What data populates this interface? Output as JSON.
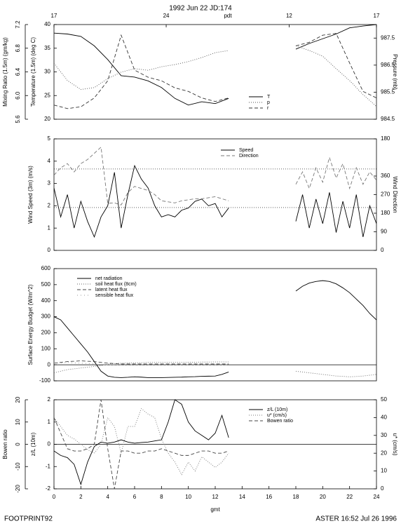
{
  "title": "1992 Jun 22 JD:174",
  "footer_left": "FOOTPRINT92",
  "footer_right": "ASTER 16:52 Jul 26 1996",
  "chart_data": [
    {
      "type": "line",
      "x": [
        0,
        1,
        2,
        3,
        4,
        5,
        6,
        7,
        8,
        9,
        10,
        11,
        12,
        13,
        15,
        18,
        19,
        20,
        21,
        22,
        23,
        24
      ],
      "xlim": [
        0,
        24
      ],
      "x2ticks": [
        {
          "value": 0,
          "label": "17"
        },
        {
          "value": 8.35,
          "label": "24"
        },
        {
          "value": 17.5,
          "label": "12"
        },
        {
          "value": 24,
          "label": "17"
        }
      ],
      "x2label": "pdt",
      "ylabel": "Temperature (1.5m) (deg C)",
      "ylim": [
        20,
        40
      ],
      "yticks": [
        20,
        25,
        30,
        35,
        40
      ],
      "y3label": "Mixing Ratio (1.5m) (gm/kg)",
      "y3lim": [
        5.6,
        7.2
      ],
      "y3ticks": [
        5.6,
        {
          "value": 6,
          "label": "6.0"
        },
        6.4,
        6.8,
        7.2
      ],
      "y2label": "Pressure (mb)",
      "y2lim": [
        984.5,
        988
      ],
      "y2ticks": [
        984.5,
        985.5,
        986.5,
        987.5
      ],
      "legend": "lower center",
      "series": [
        {
          "name": "T",
          "color": "#000000",
          "style": "solid",
          "axis": "y",
          "values": [
            38.2,
            38,
            37.5,
            35.5,
            32.6,
            29.2,
            28.9,
            28.1,
            26.7,
            24.4,
            23,
            23.7,
            23.3,
            24.4,
            null,
            34.8,
            36,
            37,
            38,
            39.3,
            39.7,
            40
          ]
        },
        {
          "name": "p",
          "color": "#555555",
          "style": "dotted",
          "axis": "y2",
          "values": [
            986.57,
            985.93,
            985.6,
            985.67,
            986.0,
            986.24,
            986.37,
            986.31,
            986.44,
            986.52,
            986.63,
            986.78,
            986.96,
            987.04,
            null,
            987.22,
            987.04,
            986.83,
            986.37,
            985.93,
            985.41,
            984.97
          ]
        },
        {
          "name": "r",
          "color": "#333333",
          "style": "dashed",
          "axis": "y3",
          "values": [
            5.84,
            5.78,
            5.81,
            5.96,
            6.25,
            7.02,
            6.43,
            6.31,
            6.25,
            6.13,
            6.07,
            5.96,
            5.9,
            5.96,
            null,
            6.84,
            6.9,
            7.02,
            7.05,
            6.55,
            6.07,
            5.96
          ]
        }
      ]
    },
    {
      "type": "line",
      "x": [
        0,
        0.5,
        1,
        1.5,
        2,
        2.5,
        3,
        3.5,
        4,
        4.5,
        5,
        5.5,
        6,
        6.5,
        7,
        7.5,
        8,
        8.5,
        9,
        9.5,
        10,
        10.5,
        11,
        11.5,
        12,
        12.5,
        13,
        13.5,
        14,
        14.5,
        15,
        15.5,
        16,
        16.5,
        17,
        17.5,
        18,
        18.5,
        19,
        19.5,
        20,
        20.5,
        21,
        21.5,
        22,
        22.5,
        23,
        23.5,
        24
      ],
      "xlim": [
        0,
        24
      ],
      "ylabel": "Wind Speed (3m) (m/s)",
      "ylim": [
        0,
        5
      ],
      "yticks": [
        0,
        1,
        2,
        3,
        4,
        5
      ],
      "y2label": "Wind Direction",
      "y2lim": [
        0,
        540
      ],
      "y2ticks": [
        0,
        90,
        180,
        270,
        360,
        {
          "value": 540,
          "label": "180"
        }
      ],
      "hlines": [
        3.65,
        1.92
      ],
      "legend": "upper center",
      "series": [
        {
          "name": "Speed",
          "color": "#000000",
          "style": "solid",
          "axis": "y",
          "values": [
            2.8,
            1.5,
            2.5,
            1.0,
            2.2,
            1.3,
            0.6,
            1.5,
            2.0,
            3.5,
            1.0,
            2.5,
            3.8,
            3.2,
            2.8,
            2.0,
            1.5,
            1.6,
            1.5,
            1.8,
            1.9,
            2.2,
            2.3,
            2.0,
            2.1,
            1.5,
            1.9,
            null,
            null,
            null,
            null,
            null,
            null,
            null,
            null,
            null,
            1.3,
            2.5,
            1.0,
            2.3,
            1.2,
            2.6,
            0.8,
            2.2,
            1.0,
            2.5,
            0.6,
            2.0,
            1.2
          ]
        },
        {
          "name": "Direction",
          "color": "#777777",
          "style": "dashed",
          "axis": "y2",
          "values": [
            364,
            400,
            420,
            380,
            420,
            440,
            470,
            500,
            228,
            230,
            220,
            280,
            310,
            300,
            290,
            270,
            240,
            235,
            230,
            240,
            245,
            250,
            250,
            255,
            260,
            250,
            240,
            null,
            null,
            null,
            null,
            null,
            null,
            null,
            null,
            null,
            320,
            380,
            300,
            400,
            330,
            450,
            350,
            420,
            300,
            400,
            320,
            380,
            340
          ]
        }
      ]
    },
    {
      "type": "line",
      "x": [
        0,
        0.5,
        1,
        1.5,
        2,
        2.5,
        3,
        3.5,
        4,
        4.5,
        5,
        5.5,
        6,
        6.5,
        7,
        7.5,
        8,
        8.5,
        9,
        9.5,
        10,
        10.5,
        11,
        11.5,
        12,
        12.5,
        13,
        13.5,
        14,
        14.5,
        15,
        15.5,
        16,
        16.5,
        17,
        17.5,
        18,
        18.5,
        19,
        19.5,
        20,
        20.5,
        21,
        21.5,
        22,
        22.5,
        23,
        23.5,
        24
      ],
      "xlim": [
        0,
        24
      ],
      "ylabel": "Surface Energy Budget (W/m^2)",
      "ylim": [
        -100,
        600
      ],
      "yticks": [
        -100,
        0,
        100,
        200,
        300,
        400,
        500,
        600
      ],
      "legend": "upper left",
      "series": [
        {
          "name": "net radiation",
          "color": "#000000",
          "style": "solid",
          "axis": "y",
          "values": [
            300,
            280,
            230,
            180,
            130,
            80,
            20,
            -40,
            -70,
            -78,
            -80,
            -78,
            -75,
            -77,
            -80,
            -80,
            -80,
            -79,
            -78,
            -77,
            -75,
            -74,
            -72,
            -71,
            -70,
            -60,
            -45,
            null,
            null,
            null,
            null,
            null,
            null,
            null,
            null,
            null,
            460,
            490,
            510,
            520,
            525,
            520,
            505,
            480,
            450,
            410,
            370,
            320,
            280
          ]
        },
        {
          "name": "soil heat flux (8cm)",
          "color": "#666666",
          "style": "dotted",
          "axis": "y",
          "values": [
            -50,
            -40,
            -30,
            -25,
            -20,
            -15,
            -10,
            -5,
            5,
            8,
            10,
            11,
            12,
            13,
            15,
            15,
            15,
            15,
            15,
            15,
            16,
            16,
            17,
            17,
            18,
            18,
            18,
            null,
            null,
            null,
            null,
            null,
            null,
            null,
            null,
            null,
            -40,
            -45,
            -50,
            -55,
            -60,
            -65,
            -70,
            -72,
            -75,
            -73,
            -70,
            -65,
            -60
          ]
        },
        {
          "name": "latent heat flux",
          "color": "#444444",
          "style": "dashed",
          "axis": "y",
          "values": [
            10,
            15,
            20,
            22,
            25,
            22,
            20,
            15,
            10,
            8,
            5,
            5,
            5,
            5,
            5,
            5,
            5,
            5,
            5,
            5,
            5,
            5,
            5,
            5,
            5,
            5,
            5,
            null,
            null,
            null,
            null,
            null,
            null,
            null,
            null,
            null,
            null,
            null,
            null,
            null,
            null,
            null,
            null,
            null,
            null,
            null,
            null,
            null,
            null
          ]
        },
        {
          "name": "sensible heat flux",
          "color": "#999999",
          "style": "sparse",
          "axis": "y",
          "values": [
            10,
            12,
            15,
            12,
            10,
            8,
            5,
            3,
            0,
            0,
            0,
            0,
            0,
            0,
            0,
            0,
            0,
            0,
            0,
            0,
            0,
            0,
            0,
            0,
            0,
            0,
            0,
            null,
            null,
            null,
            null,
            null,
            null,
            null,
            null,
            null,
            null,
            null,
            null,
            null,
            null,
            null,
            null,
            null,
            null,
            null,
            null,
            null,
            null
          ]
        }
      ]
    },
    {
      "type": "line",
      "x": [
        0,
        0.5,
        1,
        1.5,
        2,
        2.5,
        3,
        3.5,
        4,
        4.5,
        5,
        5.5,
        6,
        6.5,
        7,
        7.5,
        8,
        8.5,
        9,
        9.5,
        10,
        10.5,
        11,
        11.5,
        12,
        12.5,
        13
      ],
      "xlim": [
        0,
        24
      ],
      "xticks": [
        0,
        2,
        4,
        6,
        8,
        10,
        12,
        14,
        16,
        18,
        20,
        22,
        24
      ],
      "xlabel": "gmt",
      "ylabel": "z/L (10m)",
      "ylim": [
        -2,
        2
      ],
      "yticks": [
        -2,
        -1,
        0,
        1,
        2
      ],
      "y3label": "Bowen ratio",
      "y3lim": [
        -20,
        20
      ],
      "y3ticks": [
        -20,
        -10,
        0,
        10,
        20
      ],
      "y2label": "u* (cm/s)",
      "y2lim": [
        0,
        50
      ],
      "y2ticks": [
        0,
        10,
        20,
        30,
        40,
        50
      ],
      "legend": "upper right",
      "series": [
        {
          "name": "z/L (10m)",
          "color": "#000000",
          "style": "solid",
          "axis": "y",
          "values": [
            -0.3,
            -0.5,
            -0.6,
            -0.9,
            -1.8,
            -0.8,
            -0.1,
            0.1,
            0.05,
            0.1,
            0.2,
            0.1,
            0.05,
            0.08,
            0.1,
            0.15,
            0.2,
            1.0,
            2.0,
            1.8,
            1.0,
            0.6,
            0.4,
            0.2,
            0.5,
            1.3,
            0.3
          ]
        },
        {
          "name": "u* (cm/s)",
          "color": "#777777",
          "style": "dotted",
          "axis": "y2",
          "values": [
            40,
            35,
            30,
            28,
            25,
            22,
            20,
            25,
            40,
            35,
            20,
            35,
            35,
            45,
            42,
            40,
            28,
            20,
            15,
            8,
            15,
            10,
            18,
            15,
            12,
            15,
            20
          ]
        },
        {
          "name": "Bowen ratio",
          "color": "#444444",
          "style": "dashed",
          "axis": "y3",
          "values": [
            12,
            5,
            -2,
            -3,
            -3,
            -2,
            0,
            20,
            -2,
            -20,
            -3,
            -3,
            -4,
            -4,
            -3,
            -3,
            -2,
            -3,
            -4,
            -5,
            -5,
            -4,
            -3,
            -3,
            -4,
            -4,
            -3
          ]
        }
      ]
    }
  ]
}
